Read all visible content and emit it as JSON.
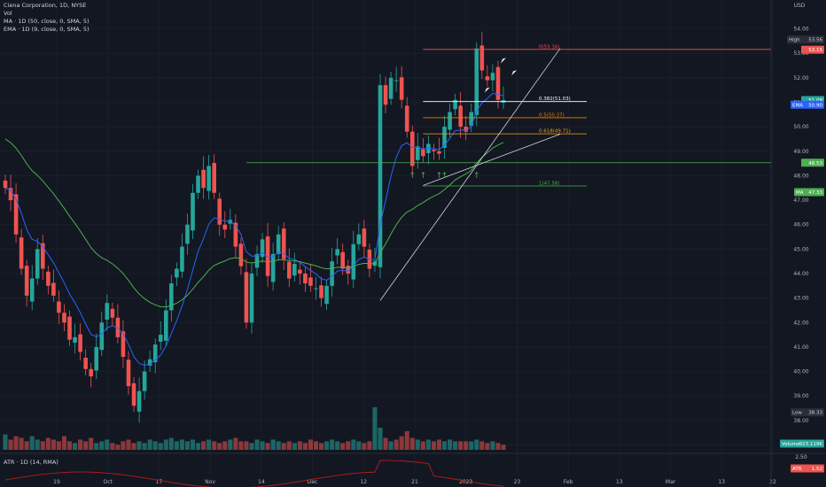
{
  "legend": {
    "title": "Ciena Corporation, 1D, NYSE",
    "vol": "Vol",
    "ma": "MA · 1D (50, close, 0, SMA, 5)",
    "ema": "EMA · 1D (9, close, 0, SMA, 5)"
  },
  "atr_legend": "ATR · 1D (14, RMA)",
  "axis": {
    "currency": "USD",
    "y_ticks": [
      "54.00",
      "53.00",
      "52.00",
      "51.00",
      "50.00",
      "49.00",
      "48.00",
      "47.00",
      "46.00",
      "45.00",
      "44.00",
      "43.00",
      "42.00",
      "41.00",
      "40.00",
      "39.00",
      "38.00",
      "37.00"
    ],
    "atr_ticks": [
      "2.50",
      "2.00"
    ],
    "x_ticks": [
      "19",
      "Oct",
      "17",
      "Nov",
      "14",
      "Dec",
      "12",
      "21",
      "2023",
      "23",
      "Feb",
      "13",
      "Mar",
      "13",
      "22"
    ]
  },
  "price_badges": [
    {
      "label": "High",
      "value": "53.56"
    },
    {
      "value": "53.15"
    },
    {
      "value": "51.09"
    },
    {
      "label": "EMA",
      "value": "50.90"
    },
    {
      "value": "48.53"
    },
    {
      "label": "MA",
      "value": "47.33"
    },
    {
      "label": "Low",
      "value": "38.33"
    },
    {
      "label": "Volume",
      "value": "923.119K"
    },
    {
      "label": "ATR",
      "value": "1.52"
    }
  ],
  "fib_levels": [
    {
      "ratio": "0(53.16)",
      "value": 53.16,
      "color": "#ef5350"
    },
    {
      "ratio": "0.382(51.03)",
      "value": 51.03,
      "color": "#ffffff"
    },
    {
      "ratio": "0.5(50.37)",
      "value": 50.37,
      "color": "#f57c00"
    },
    {
      "ratio": "0.618(49.71)",
      "value": 49.71,
      "color": "#f5a623"
    },
    {
      "ratio": "1(47.58)",
      "value": 47.58,
      "color": "#4caf50"
    }
  ],
  "colors": {
    "up": "#26a69a",
    "down": "#ef5350",
    "ema": "#2962ff",
    "ma": "#4caf50",
    "background": "#131722",
    "grid": "#1e222d",
    "atr": "#b71c1c",
    "signal_arrow": "#4caf50"
  },
  "chart_data": {
    "type": "candlestick",
    "symbol": "Ciena Corporation",
    "interval": "1D",
    "exchange": "NYSE",
    "ylim": [
      36.8,
      54.6
    ],
    "closes": [
      47.5,
      47.0,
      45.6,
      44.2,
      43.1,
      43.8,
      45.0,
      44.2,
      43.5,
      43.1,
      42.4,
      42.0,
      41.3,
      41.4,
      40.8,
      40.1,
      39.8,
      41.0,
      42.0,
      42.8,
      42.2,
      41.4,
      40.6,
      39.4,
      38.6,
      39.2,
      40.0,
      40.5,
      41.1,
      41.5,
      42.5,
      43.6,
      44.2,
      45.1,
      46.0,
      47.3,
      48.0,
      47.5,
      48.4,
      47.3,
      46.0,
      45.8,
      46.2,
      45.1,
      44.3,
      42.0,
      44.0,
      44.8,
      45.4,
      43.9,
      44.8,
      45.6,
      44.6,
      43.8,
      44.4,
      44.0,
      43.6,
      43.5,
      43.4,
      43.0,
      43.5,
      44.5,
      45.0,
      44.2,
      44.0,
      45.2,
      45.6,
      45.1,
      44.2,
      44.5,
      51.7,
      50.9,
      52.0,
      51.9,
      51.1,
      49.8,
      48.4,
      49.2,
      48.8,
      49.3,
      49.0,
      48.9,
      50.0,
      50.6,
      51.1,
      50.0,
      49.8,
      50.6,
      53.2,
      52.3,
      51.9,
      52.2,
      51.1,
      51.09
    ],
    "volumes": [
      0.9,
      0.6,
      0.8,
      0.7,
      0.5,
      0.8,
      0.6,
      0.5,
      0.7,
      0.6,
      0.5,
      0.8,
      0.5,
      0.4,
      0.6,
      0.5,
      0.7,
      0.4,
      0.5,
      0.6,
      0.4,
      0.3,
      0.5,
      0.6,
      0.4,
      0.5,
      0.4,
      0.6,
      0.5,
      0.4,
      0.6,
      0.7,
      0.5,
      0.6,
      0.5,
      0.6,
      0.4,
      0.5,
      0.6,
      0.5,
      0.4,
      0.5,
      0.6,
      0.7,
      0.5,
      0.5,
      0.4,
      0.6,
      0.5,
      0.4,
      0.6,
      0.5,
      0.4,
      0.5,
      0.4,
      0.5,
      0.4,
      0.6,
      0.5,
      0.4,
      0.5,
      0.6,
      0.5,
      0.4,
      0.5,
      0.6,
      0.5,
      0.4,
      0.5,
      2.5,
      1.3,
      0.7,
      0.5,
      0.6,
      0.8,
      1.1,
      0.7,
      0.6,
      0.5,
      0.6,
      0.5,
      0.6,
      0.5,
      0.6,
      0.5,
      0.5,
      0.5,
      0.5,
      0.6,
      0.5,
      0.4,
      0.5,
      0.4,
      0.3
    ],
    "high": 53.56,
    "low": 38.33,
    "last": 51.09,
    "ema": 50.9,
    "ma": 47.33
  }
}
